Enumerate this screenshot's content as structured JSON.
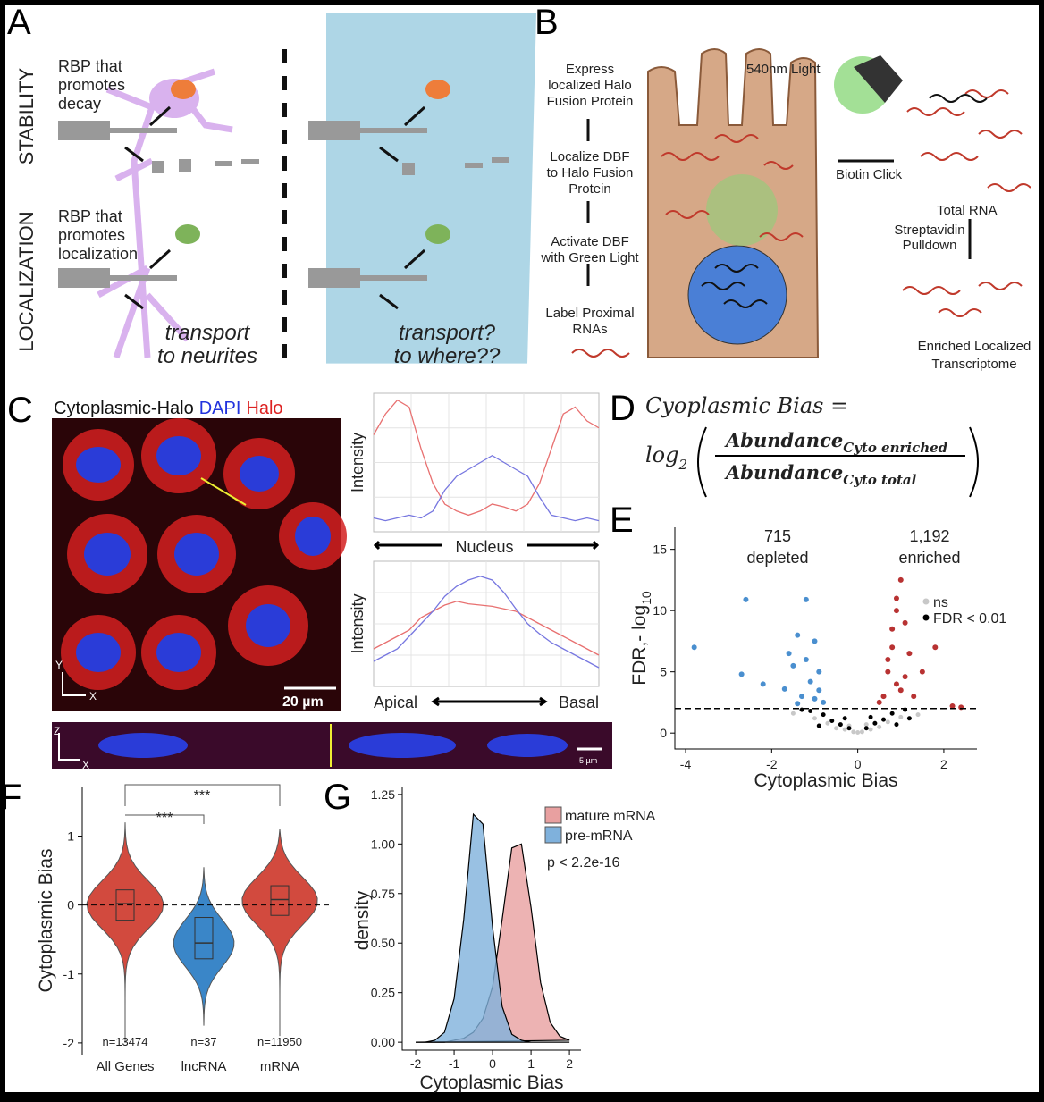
{
  "panel_labels": [
    "A",
    "B",
    "C",
    "D",
    "E",
    "F",
    "G"
  ],
  "panel_a": {
    "row_labels": [
      "STABILITY",
      "LOCALIZATION"
    ],
    "rbp_decay": [
      "RBP that",
      "promotes",
      "decay"
    ],
    "rbp_localization": [
      "RBP that",
      "promotes",
      "localization"
    ],
    "neuron_caption": [
      "transport",
      "to neurites"
    ],
    "cell_caption": [
      "transport?",
      "to where??"
    ]
  },
  "panel_b": {
    "steps": [
      [
        "Express",
        "localized Halo",
        "Fusion Protein"
      ],
      [
        "Localize DBF",
        "to Halo Fusion",
        "Protein"
      ],
      [
        "Activate DBF",
        "with Green Light"
      ],
      [
        "Label Proximal",
        "RNAs"
      ]
    ],
    "light": "540nm Light",
    "click": "Biotin Click",
    "total": "Total RNA",
    "pulldown": [
      "Streptavidin",
      "Pulldown"
    ],
    "enriched": [
      "Enriched Localized",
      "Transcriptome"
    ]
  },
  "panel_c": {
    "title_parts": [
      "Cytoplasmic-Halo",
      "DAPI",
      "Halo"
    ],
    "scale_bar": "20 µm",
    "scale_bar_z": "5 µm",
    "axis_xy": [
      "Y",
      "X"
    ],
    "axis_zx": [
      "Z",
      "X"
    ],
    "plot1": {
      "ylabel": "Intensity",
      "xlabel": "Nucleus",
      "red": [
        0.7,
        0.85,
        0.95,
        0.9,
        0.6,
        0.35,
        0.2,
        0.15,
        0.12,
        0.15,
        0.2,
        0.18,
        0.15,
        0.2,
        0.35,
        0.6,
        0.85,
        0.9,
        0.8,
        0.75
      ],
      "blue": [
        0.1,
        0.08,
        0.1,
        0.12,
        0.1,
        0.15,
        0.3,
        0.4,
        0.45,
        0.5,
        0.55,
        0.5,
        0.45,
        0.4,
        0.25,
        0.12,
        0.1,
        0.08,
        0.1,
        0.08
      ]
    },
    "plot2": {
      "ylabel": "Intensity",
      "xlabel_left": "Apical",
      "xlabel_right": "Basal",
      "red": [
        0.3,
        0.35,
        0.4,
        0.45,
        0.55,
        0.6,
        0.65,
        0.68,
        0.66,
        0.65,
        0.64,
        0.62,
        0.6,
        0.55,
        0.5,
        0.45,
        0.4,
        0.35,
        0.3,
        0.25
      ],
      "blue": [
        0.2,
        0.25,
        0.3,
        0.4,
        0.5,
        0.6,
        0.72,
        0.8,
        0.85,
        0.88,
        0.85,
        0.75,
        0.62,
        0.5,
        0.42,
        0.35,
        0.3,
        0.25,
        0.2,
        0.15
      ]
    }
  },
  "panel_d": {
    "lhs": "Cyoplasmic Bias =",
    "log": "log",
    "log_sub": "2",
    "numerator": "Abundance",
    "num_sub": "Cyto enriched",
    "denominator": "Abundance",
    "den_sub": "Cyto total"
  },
  "panel_e": {
    "type": "scatter",
    "xlabel": "Cytoplasmic Bias",
    "ylabel": "FDR,- log",
    "ylabel_sub": "10",
    "xlim": [
      -4.25,
      2.77
    ],
    "ylim": [
      -1.3,
      16.8
    ],
    "xticks": [
      -4,
      -2,
      0,
      2
    ],
    "yticks": [
      0,
      5,
      10,
      15
    ],
    "threshold": 2,
    "series": [
      {
        "name": "ns",
        "color": "#c8c8c8",
        "x": [
          -0.5,
          -0.3,
          -0.1,
          0.1,
          0.3,
          0.5,
          -0.7,
          0.7,
          -1.0,
          1.0,
          -1.5,
          1.4,
          0.0,
          -0.2,
          0.2
        ],
        "y": [
          0.4,
          0.3,
          0.1,
          0.1,
          0.3,
          0.5,
          0.8,
          0.9,
          1.2,
          1.3,
          1.6,
          1.5,
          0.05,
          0.6,
          0.7
        ]
      },
      {
        "name": "FDR < 0.01",
        "color": "#000000",
        "x": [
          -0.6,
          -0.4,
          -0.2,
          0.2,
          0.4,
          0.6,
          -0.8,
          0.8,
          -1.1,
          1.1,
          -0.9,
          0.9,
          -0.3,
          0.3,
          -1.3,
          1.2
        ],
        "y": [
          1.0,
          0.7,
          0.4,
          0.4,
          0.8,
          1.1,
          1.5,
          1.6,
          1.8,
          1.9,
          0.6,
          0.7,
          1.2,
          1.3,
          1.9,
          1.2
        ]
      }
    ],
    "groups": [
      {
        "count": "715",
        "label": "depleted",
        "color": "#4a8fcf",
        "x": [
          -3.8,
          -2.6,
          -2.7,
          -2.2,
          -1.6,
          -1.4,
          -1.2,
          -1.0,
          -0.9,
          -1.3,
          -1.1,
          -0.8,
          -1.5,
          -1.7,
          -1.0,
          -1.2,
          -0.9,
          -1.4
        ],
        "y": [
          7.0,
          10.9,
          4.8,
          4.0,
          6.5,
          8.0,
          10.9,
          7.5,
          5.0,
          3.0,
          4.2,
          2.5,
          5.5,
          3.6,
          2.8,
          6.0,
          3.5,
          2.4
        ]
      },
      {
        "count": "1,192",
        "label": "enriched",
        "color": "#b83232",
        "x": [
          0.6,
          0.7,
          0.8,
          0.9,
          1.0,
          1.1,
          0.9,
          1.2,
          1.5,
          1.8,
          2.2,
          2.4,
          0.5,
          0.8,
          1.0,
          0.7,
          1.3,
          0.9,
          1.1
        ],
        "y": [
          3.0,
          5.0,
          7.0,
          10.0,
          12.5,
          9.0,
          4.0,
          6.5,
          5.0,
          7.0,
          2.2,
          2.1,
          2.5,
          8.5,
          3.5,
          6.0,
          3.0,
          11.0,
          4.6
        ]
      }
    ]
  },
  "panel_f": {
    "type": "violin",
    "ylabel": "Cytoplasmic Bias",
    "categories": [
      "All Genes",
      "lncRNA",
      "mRNA"
    ],
    "n_labels": [
      "n=13474",
      "n=37",
      "n=11950"
    ],
    "colors": [
      "#d24a3e",
      "#3a86c8",
      "#d24a3e"
    ],
    "ylim": [
      -2.17,
      1.72
    ],
    "yticks": [
      -2,
      -1,
      0,
      1
    ],
    "medians": [
      0.02,
      -0.55,
      0.08
    ],
    "q1": [
      -0.22,
      -0.78,
      -0.15
    ],
    "q3": [
      0.22,
      -0.18,
      0.28
    ],
    "mins": [
      -2.0,
      -1.75,
      -1.9
    ],
    "maxs": [
      1.2,
      0.55,
      1.1
    ],
    "significance": [
      "***",
      "***"
    ]
  },
  "panel_g": {
    "type": "density",
    "xlabel": "Cytoplasmic Bias",
    "ylabel": "density",
    "annotation": "p < 2.2e-16",
    "xlim": [
      -2.35,
      2.3
    ],
    "ylim": [
      -0.04,
      1.29
    ],
    "xticks": [
      -2,
      -1,
      0,
      1,
      2
    ],
    "yticks": [
      {
        "value": 0,
        "label": "0.00"
      },
      {
        "value": 0.25,
        "label": "0.25"
      },
      {
        "value": 0.5,
        "label": "0.50"
      },
      {
        "value": 0.75,
        "label": "0.75"
      },
      {
        "value": 1,
        "label": "1.00"
      },
      {
        "value": 1.25,
        "label": "1.25"
      }
    ],
    "x": [
      -2,
      -1.75,
      -1.5,
      -1.25,
      -1,
      -0.75,
      -0.5,
      -0.25,
      0,
      0.25,
      0.5,
      0.75,
      1,
      1.25,
      1.5,
      1.75,
      2
    ],
    "series": [
      {
        "name": "mature mRNA",
        "color": "#e8a0a0",
        "values": [
          0,
          0,
          0,
          0,
          0.01,
          0.02,
          0.05,
          0.12,
          0.28,
          0.62,
          0.98,
          1.0,
          0.68,
          0.3,
          0.1,
          0.03,
          0.01
        ]
      },
      {
        "name": "pre-mRNA",
        "color": "#7fb1dc",
        "values": [
          0,
          0,
          0.01,
          0.05,
          0.22,
          0.62,
          1.15,
          1.1,
          0.58,
          0.18,
          0.04,
          0.01,
          0,
          0,
          0,
          0,
          0
        ]
      }
    ]
  }
}
